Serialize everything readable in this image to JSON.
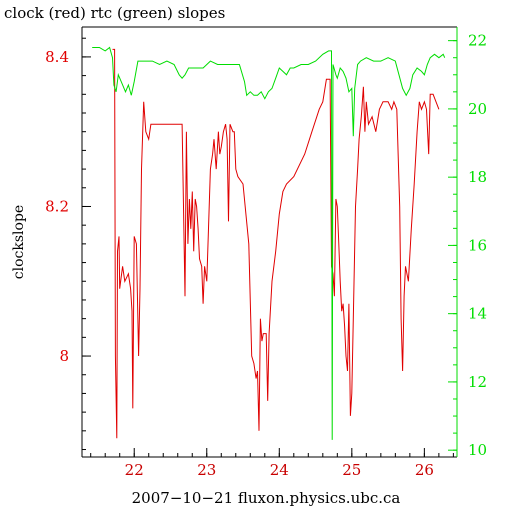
{
  "chart_data": {
    "type": "line",
    "title": "clock (red) rtc (green) slopes",
    "xlabel": "2007−10−21 fluxon.physics.ubc.ca",
    "ylabel": "clockslope",
    "xlim": [
      21.28,
      26.45
    ],
    "x_ticks": [
      22,
      23,
      24,
      25,
      26
    ],
    "x_tick_labels": [
      "22",
      "23",
      "24",
      "25",
      "26"
    ],
    "y_left": {
      "lim": [
        7.865,
        8.44
      ],
      "ticks": [
        8,
        8.2,
        8.4
      ],
      "tick_labels": [
        "8",
        "8.2",
        "8.4"
      ],
      "color": "#e00000"
    },
    "y_right": {
      "lim": [
        9.8,
        22.4
      ],
      "ticks": [
        10,
        12,
        14,
        16,
        18,
        20,
        22
      ],
      "tick_labels": [
        "10",
        "12",
        "14",
        "16",
        "18",
        "20",
        "22"
      ],
      "color": "#00dd00"
    },
    "grid": false,
    "legend": "none",
    "series": [
      {
        "name": "clock",
        "axis": "left",
        "color": "#e00000",
        "points": [
          [
            21.7,
            8.41
          ],
          [
            21.73,
            8.41
          ],
          [
            21.74,
            8.0
          ],
          [
            21.76,
            7.89
          ],
          [
            21.77,
            8.14
          ],
          [
            21.79,
            8.16
          ],
          [
            21.8,
            8.09
          ],
          [
            21.84,
            8.12
          ],
          [
            21.87,
            8.1
          ],
          [
            21.92,
            8.11
          ],
          [
            21.95,
            8.09
          ],
          [
            21.97,
            8.06
          ],
          [
            21.98,
            7.93
          ],
          [
            22.0,
            8.16
          ],
          [
            22.03,
            8.15
          ],
          [
            22.06,
            8.0
          ],
          [
            22.08,
            8.09
          ],
          [
            22.1,
            8.25
          ],
          [
            22.13,
            8.34
          ],
          [
            22.16,
            8.3
          ],
          [
            22.2,
            8.29
          ],
          [
            22.23,
            8.31
          ],
          [
            22.35,
            8.31
          ],
          [
            22.5,
            8.31
          ],
          [
            22.66,
            8.31
          ],
          [
            22.68,
            8.2
          ],
          [
            22.7,
            8.08
          ],
          [
            22.72,
            8.3
          ],
          [
            22.74,
            8.15
          ],
          [
            22.76,
            8.21
          ],
          [
            22.78,
            8.17
          ],
          [
            22.8,
            8.22
          ],
          [
            22.82,
            8.14
          ],
          [
            22.84,
            8.21
          ],
          [
            22.86,
            8.2
          ],
          [
            22.88,
            8.17
          ],
          [
            22.9,
            8.13
          ],
          [
            22.93,
            8.12
          ],
          [
            22.95,
            8.07
          ],
          [
            22.97,
            8.12
          ],
          [
            23.0,
            8.1
          ],
          [
            23.05,
            8.25
          ],
          [
            23.08,
            8.27
          ],
          [
            23.1,
            8.29
          ],
          [
            23.13,
            8.25
          ],
          [
            23.16,
            8.3
          ],
          [
            23.18,
            8.27
          ],
          [
            23.2,
            8.28
          ],
          [
            23.23,
            8.3
          ],
          [
            23.26,
            8.31
          ],
          [
            23.28,
            8.29
          ],
          [
            23.3,
            8.18
          ],
          [
            23.32,
            8.31
          ],
          [
            23.36,
            8.3
          ],
          [
            23.38,
            8.3
          ],
          [
            23.4,
            8.25
          ],
          [
            23.43,
            8.24
          ],
          [
            23.5,
            8.23
          ],
          [
            23.58,
            8.15
          ],
          [
            23.62,
            8.0
          ],
          [
            23.65,
            7.99
          ],
          [
            23.68,
            7.97
          ],
          [
            23.7,
            7.98
          ],
          [
            23.72,
            7.9
          ],
          [
            23.74,
            8.05
          ],
          [
            23.76,
            8.02
          ],
          [
            23.78,
            8.03
          ],
          [
            23.82,
            8.03
          ],
          [
            23.84,
            7.94
          ],
          [
            23.86,
            8.03
          ],
          [
            23.9,
            8.1
          ],
          [
            23.95,
            8.14
          ],
          [
            24.0,
            8.19
          ],
          [
            24.05,
            8.22
          ],
          [
            24.1,
            8.23
          ],
          [
            24.2,
            8.24
          ],
          [
            24.35,
            8.27
          ],
          [
            24.45,
            8.3
          ],
          [
            24.55,
            8.33
          ],
          [
            24.6,
            8.34
          ],
          [
            24.65,
            8.37
          ],
          [
            24.7,
            8.37
          ],
          [
            24.72,
            8.12
          ],
          [
            24.74,
            8.11
          ],
          [
            24.76,
            8.08
          ],
          [
            24.78,
            8.21
          ],
          [
            24.8,
            8.2
          ],
          [
            24.82,
            8.15
          ],
          [
            24.84,
            8.1
          ],
          [
            24.86,
            8.06
          ],
          [
            24.88,
            8.07
          ],
          [
            24.9,
            8.04
          ],
          [
            24.92,
            8.0
          ],
          [
            24.94,
            7.98
          ],
          [
            24.96,
            8.07
          ],
          [
            24.98,
            7.92
          ],
          [
            25.0,
            7.95
          ],
          [
            25.02,
            8.05
          ],
          [
            25.05,
            8.2
          ],
          [
            25.08,
            8.25
          ],
          [
            25.1,
            8.29
          ],
          [
            25.13,
            8.32
          ],
          [
            25.16,
            8.36
          ],
          [
            25.18,
            8.3
          ],
          [
            25.2,
            8.34
          ],
          [
            25.23,
            8.31
          ],
          [
            25.28,
            8.32
          ],
          [
            25.33,
            8.3
          ],
          [
            25.38,
            8.33
          ],
          [
            25.43,
            8.34
          ],
          [
            25.5,
            8.34
          ],
          [
            25.55,
            8.33
          ],
          [
            25.58,
            8.34
          ],
          [
            25.62,
            8.33
          ],
          [
            25.66,
            8.2
          ],
          [
            25.68,
            8.05
          ],
          [
            25.7,
            7.98
          ],
          [
            25.72,
            8.08
          ],
          [
            25.74,
            8.12
          ],
          [
            25.78,
            8.1
          ],
          [
            25.82,
            8.17
          ],
          [
            25.86,
            8.23
          ],
          [
            25.9,
            8.3
          ],
          [
            25.93,
            8.34
          ],
          [
            25.96,
            8.33
          ],
          [
            26.0,
            8.34
          ],
          [
            26.03,
            8.33
          ],
          [
            26.06,
            8.27
          ],
          [
            26.08,
            8.35
          ],
          [
            26.12,
            8.35
          ],
          [
            26.16,
            8.34
          ],
          [
            26.2,
            8.33
          ]
        ]
      },
      {
        "name": "rtc",
        "axis": "right",
        "color": "#00dd00",
        "points": [
          [
            21.42,
            21.8
          ],
          [
            21.52,
            21.8
          ],
          [
            21.6,
            21.7
          ],
          [
            21.66,
            21.8
          ],
          [
            21.7,
            21.5
          ],
          [
            21.72,
            20.7
          ],
          [
            21.75,
            20.5
          ],
          [
            21.78,
            21.0
          ],
          [
            21.82,
            20.8
          ],
          [
            21.88,
            20.5
          ],
          [
            21.92,
            20.7
          ],
          [
            21.96,
            20.4
          ],
          [
            22.0,
            20.8
          ],
          [
            22.05,
            21.4
          ],
          [
            22.1,
            21.4
          ],
          [
            22.16,
            21.4
          ],
          [
            22.25,
            21.4
          ],
          [
            22.35,
            21.3
          ],
          [
            22.45,
            21.4
          ],
          [
            22.55,
            21.3
          ],
          [
            22.62,
            21.0
          ],
          [
            22.66,
            20.9
          ],
          [
            22.7,
            21.0
          ],
          [
            22.75,
            21.2
          ],
          [
            22.85,
            21.2
          ],
          [
            22.95,
            21.2
          ],
          [
            23.05,
            21.4
          ],
          [
            23.15,
            21.3
          ],
          [
            23.25,
            21.3
          ],
          [
            23.35,
            21.3
          ],
          [
            23.45,
            21.3
          ],
          [
            23.52,
            20.8
          ],
          [
            23.55,
            20.4
          ],
          [
            23.6,
            20.5
          ],
          [
            23.65,
            20.4
          ],
          [
            23.7,
            20.4
          ],
          [
            23.75,
            20.5
          ],
          [
            23.8,
            20.3
          ],
          [
            23.85,
            20.5
          ],
          [
            23.9,
            20.6
          ],
          [
            23.95,
            20.9
          ],
          [
            24.0,
            21.2
          ],
          [
            24.05,
            21.1
          ],
          [
            24.1,
            21.0
          ],
          [
            24.15,
            21.2
          ],
          [
            24.2,
            21.2
          ],
          [
            24.3,
            21.3
          ],
          [
            24.4,
            21.3
          ],
          [
            24.5,
            21.4
          ],
          [
            24.6,
            21.6
          ],
          [
            24.68,
            21.7
          ],
          [
            24.72,
            21.7
          ],
          [
            24.73,
            10.3
          ],
          [
            24.74,
            21.3
          ],
          [
            24.78,
            21.0
          ],
          [
            24.8,
            20.9
          ],
          [
            24.84,
            21.2
          ],
          [
            24.88,
            21.1
          ],
          [
            24.92,
            20.9
          ],
          [
            24.96,
            20.5
          ],
          [
            25.0,
            20.6
          ],
          [
            25.02,
            19.2
          ],
          [
            25.04,
            20.6
          ],
          [
            25.08,
            21.3
          ],
          [
            25.12,
            21.4
          ],
          [
            25.2,
            21.5
          ],
          [
            25.3,
            21.4
          ],
          [
            25.4,
            21.4
          ],
          [
            25.5,
            21.5
          ],
          [
            25.6,
            21.4
          ],
          [
            25.7,
            20.6
          ],
          [
            25.75,
            20.4
          ],
          [
            25.8,
            20.6
          ],
          [
            25.84,
            21.0
          ],
          [
            25.9,
            21.2
          ],
          [
            25.96,
            21.1
          ],
          [
            26.0,
            21.0
          ],
          [
            26.04,
            21.3
          ],
          [
            26.08,
            21.5
          ],
          [
            26.14,
            21.6
          ],
          [
            26.2,
            21.5
          ],
          [
            26.26,
            21.6
          ],
          [
            26.28,
            21.5
          ]
        ]
      }
    ]
  }
}
